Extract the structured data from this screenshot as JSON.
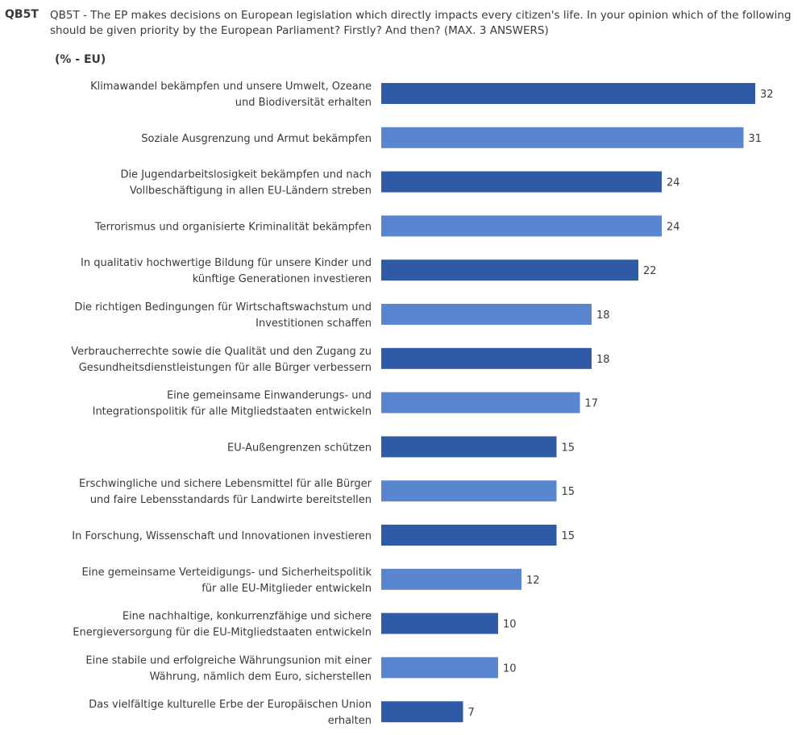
{
  "header": {
    "code": "QB5T",
    "question": "QB5T - The EP makes decisions on European legislation which directly impacts every citizen's life. In your opinion which of the following should be given priority by the European Parliament? Firstly? And then? (MAX. 3 ANSWERS)",
    "unit": "(% - EU)"
  },
  "colors": {
    "dark": "#2f5aa6",
    "light": "#5a85cf"
  },
  "chart_data": {
    "type": "bar",
    "orientation": "horizontal",
    "title": "",
    "xlabel": "",
    "ylabel": "",
    "xlim": [
      0,
      33
    ],
    "grid": false,
    "legend": "none",
    "categories": [
      [
        "Klimawandel bekämpfen und unsere Umwelt, Ozeane",
        "und Biodiversität erhalten"
      ],
      [
        "Soziale Ausgrenzung und Armut bekämpfen"
      ],
      [
        "Die Jugendarbeitslosigkeit bekämpfen und nach",
        "Vollbeschäftigung in allen EU-Ländern streben"
      ],
      [
        "Terrorismus und organisierte Kriminalität bekämpfen"
      ],
      [
        "In qualitativ hochwertige Bildung für unsere Kinder und",
        "künftige Generationen investieren"
      ],
      [
        "Die richtigen Bedingungen für Wirtschaftswachstum und",
        "Investitionen schaffen"
      ],
      [
        "Verbraucherrechte sowie die Qualität und den Zugang zu",
        "Gesundheitsdienstleistungen für alle Bürger verbessern"
      ],
      [
        "Eine gemeinsame Einwanderungs- und",
        "Integrationspolitik für alle Mitgliedstaaten entwickeln"
      ],
      [
        "EU-Außengrenzen schützen"
      ],
      [
        "Erschwingliche und sichere Lebensmittel für alle Bürger",
        "und faire Lebensstandards für Landwirte bereitstellen"
      ],
      [
        "In Forschung, Wissenschaft und Innovationen investieren"
      ],
      [
        "Eine gemeinsame Verteidigungs- und Sicherheitspolitik",
        "für alle EU-Mitglieder entwickeln"
      ],
      [
        "Eine nachhaltige, konkurrenzfähige und sichere",
        "Energieversorgung für die EU-Mitgliedstaaten entwickeln"
      ],
      [
        "Eine stabile und erfolgreiche Währungsunion mit einer",
        "Währung, nämlich dem Euro, sicherstellen"
      ],
      [
        "Das vielfältige kulturelle Erbe der Europäischen Union",
        "erhalten"
      ]
    ],
    "values": [
      32,
      31,
      24,
      24,
      22,
      18,
      18,
      17,
      15,
      15,
      15,
      12,
      10,
      10,
      7
    ],
    "bar_color_keys": [
      "dark",
      "light",
      "dark",
      "light",
      "dark",
      "light",
      "dark",
      "light",
      "dark",
      "light",
      "dark",
      "light",
      "dark",
      "light",
      "dark"
    ]
  }
}
